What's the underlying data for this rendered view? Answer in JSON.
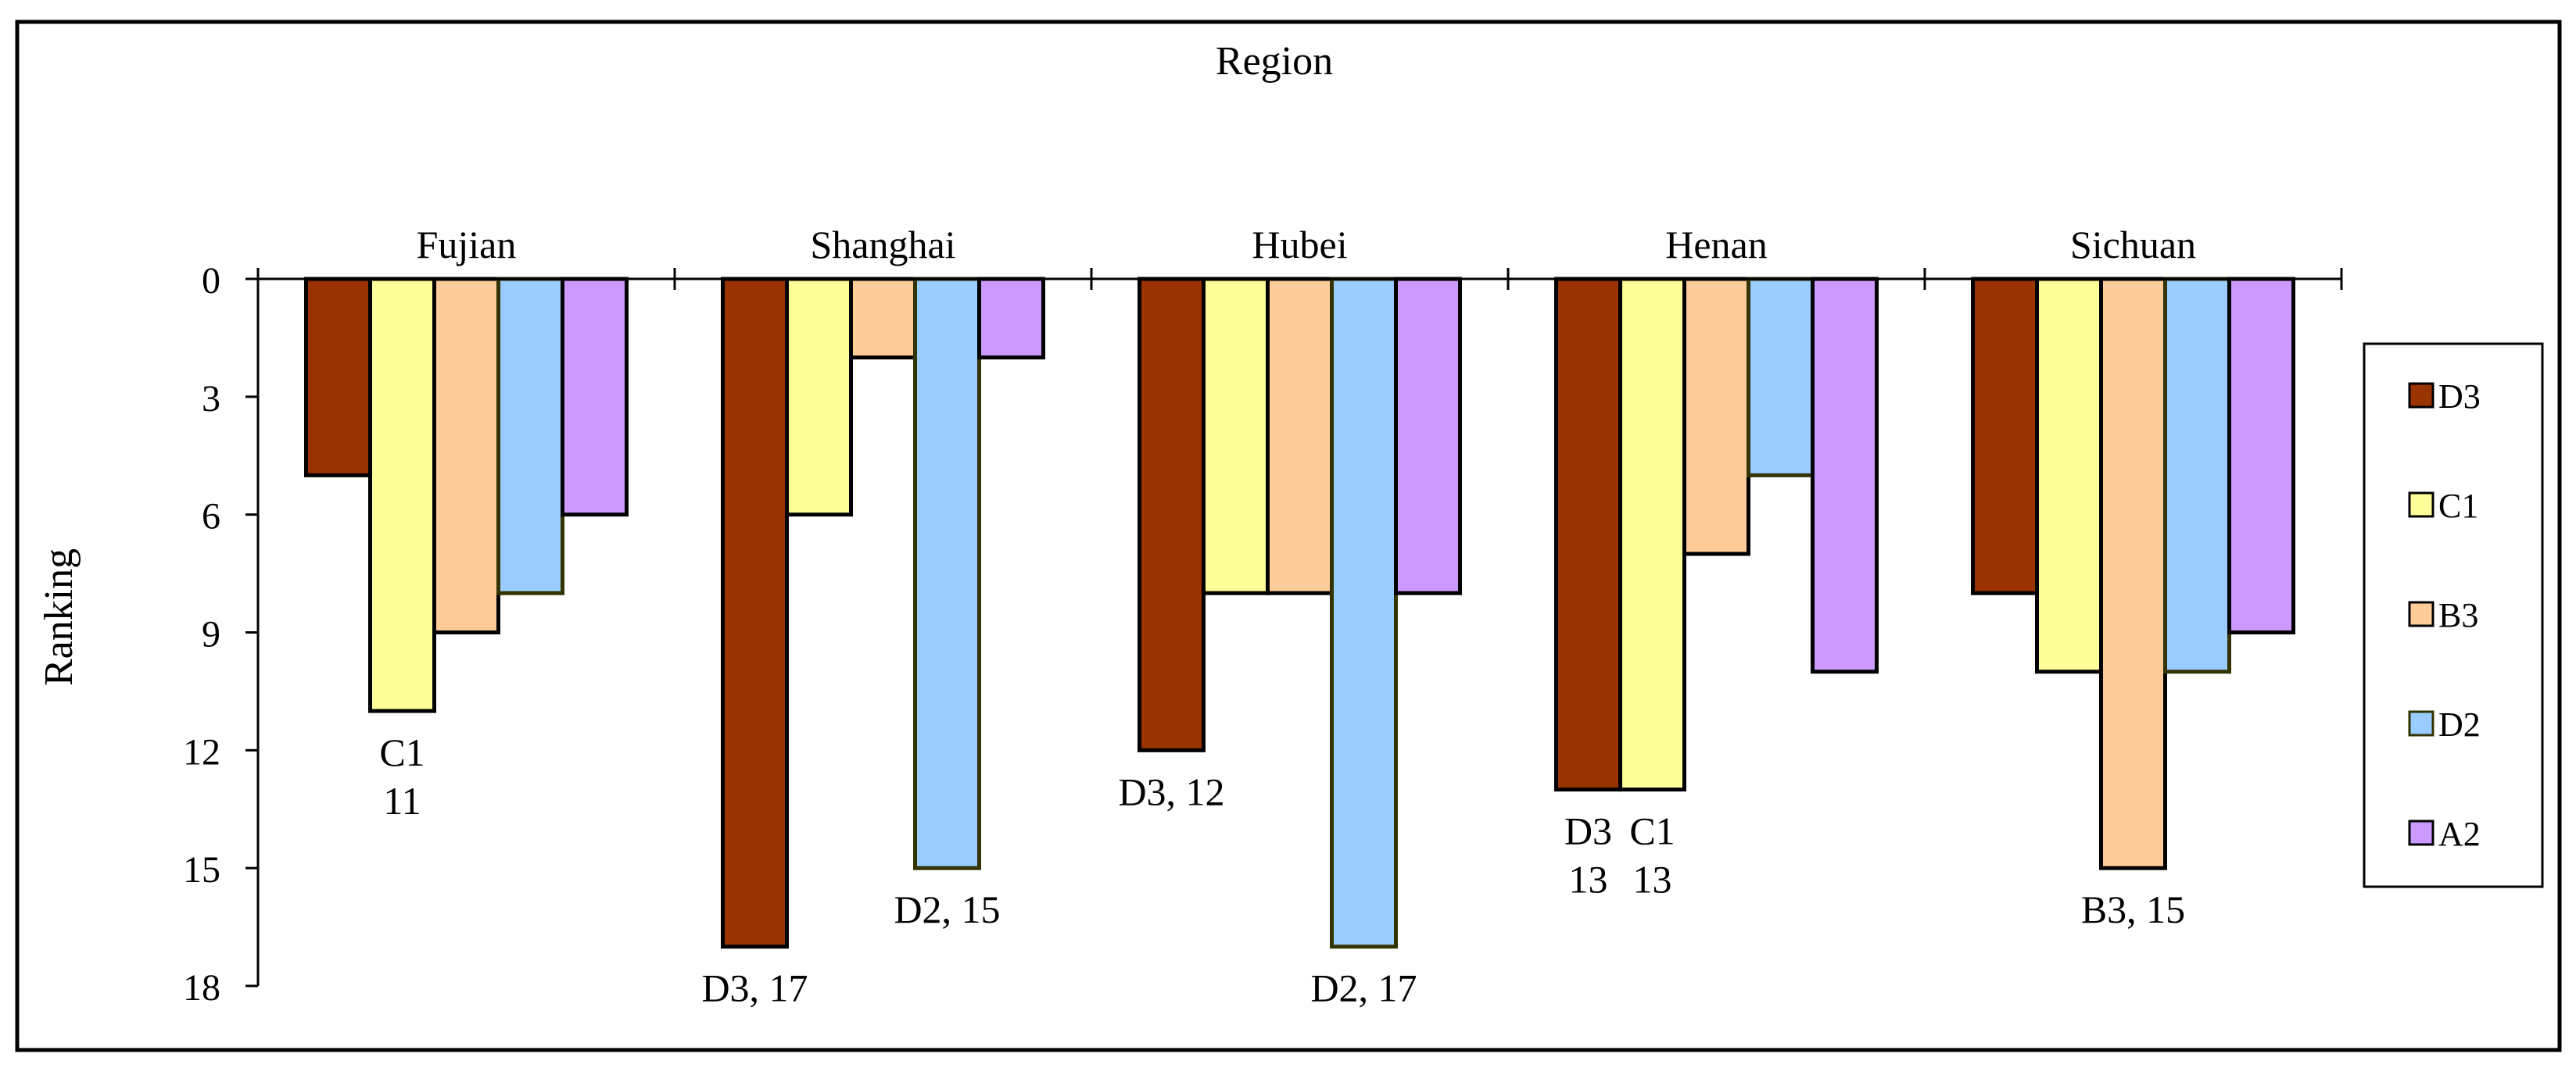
{
  "chart_data": {
    "type": "bar",
    "title": "Region",
    "xlabel": "",
    "ylabel": "Ranking",
    "categories": [
      "Fujian",
      "Shanghai",
      "Hubei",
      "Henan",
      "Sichuan"
    ],
    "ylim": [
      0,
      18
    ],
    "yticks": [
      "0",
      "3",
      "6",
      "9",
      "12",
      "15",
      "18"
    ],
    "y_inverted": true,
    "legend_position": "right",
    "series": [
      {
        "name": "D3",
        "color": "#993300",
        "values": [
          5,
          17,
          12,
          13,
          8
        ]
      },
      {
        "name": "C1",
        "color": "#FFFF99",
        "values": [
          11,
          6,
          8,
          13,
          10
        ]
      },
      {
        "name": "B3",
        "color": "#FFCC99",
        "values": [
          9,
          2,
          8,
          7,
          15
        ]
      },
      {
        "name": "D2",
        "color": "#99CCFF",
        "values": [
          8,
          15,
          17,
          5,
          10
        ]
      },
      {
        "name": "A2",
        "color": "#CC99FF",
        "values": [
          6,
          2,
          8,
          10,
          9
        ]
      }
    ],
    "annotations": [
      {
        "category": "Fujian",
        "series": "C1",
        "lines": [
          "C1",
          "11"
        ]
      },
      {
        "category": "Shanghai",
        "series": "D3",
        "lines": [
          "D3, 17"
        ]
      },
      {
        "category": "Shanghai",
        "series": "D2",
        "lines": [
          "D2, 15"
        ]
      },
      {
        "category": "Hubei",
        "series": "D3",
        "lines": [
          "D3, 12"
        ]
      },
      {
        "category": "Hubei",
        "series": "D2",
        "lines": [
          "D2, 17"
        ]
      },
      {
        "category": "Henan",
        "series": "D3",
        "lines": [
          "D3",
          "13"
        ]
      },
      {
        "category": "Henan",
        "series": "C1",
        "lines": [
          "C1",
          "13"
        ]
      },
      {
        "category": "Sichuan",
        "series": "B3",
        "lines": [
          "B3, 15"
        ]
      }
    ]
  }
}
